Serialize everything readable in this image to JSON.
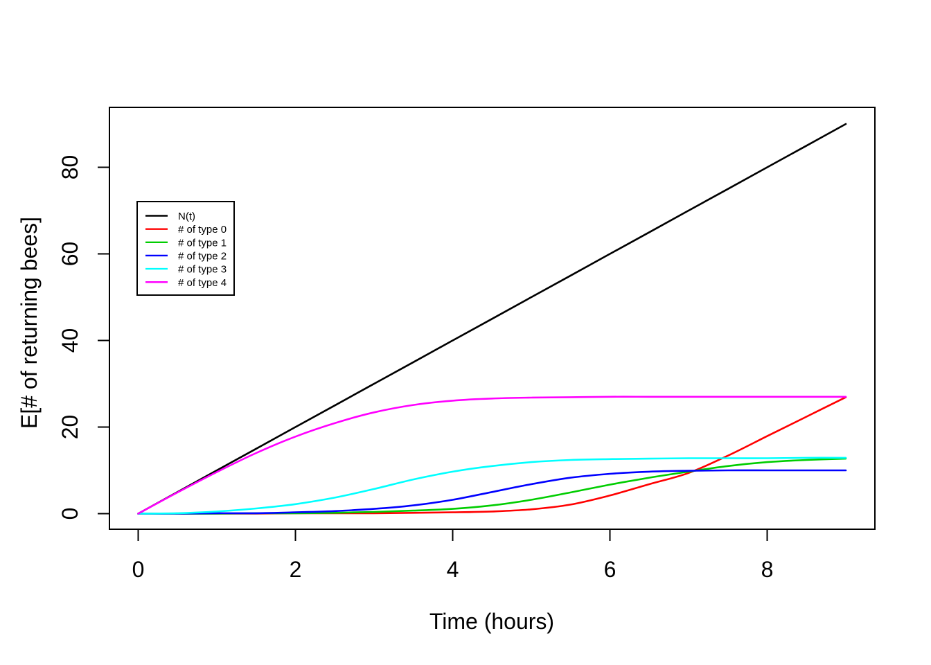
{
  "chart_data": {
    "type": "line",
    "title": "",
    "xlabel": "Time (hours)",
    "ylabel": "E[# of returning bees]",
    "xlim": [
      0,
      9
    ],
    "ylim": [
      0,
      90
    ],
    "x_ticks": [
      0,
      2,
      4,
      6,
      8
    ],
    "y_ticks": [
      0,
      20,
      40,
      60,
      80
    ],
    "grid": false,
    "legend_position": "upper-left-inside",
    "line_width": 2.6,
    "x": [
      0,
      0.5,
      1,
      1.5,
      2,
      2.5,
      3,
      3.5,
      4,
      4.5,
      5,
      5.5,
      6,
      6.5,
      7,
      7.5,
      8,
      8.5,
      9
    ],
    "series": [
      {
        "name": "N(t)",
        "color": "#000000",
        "values": [
          0,
          5,
          10,
          15,
          20,
          25,
          30,
          35,
          40,
          45,
          50,
          55,
          60,
          65,
          70,
          75,
          80,
          85,
          90
        ]
      },
      {
        "name": "# of type 0",
        "color": "#FF0000",
        "values": [
          0,
          0,
          0,
          0,
          0.1,
          0.1,
          0.1,
          0.2,
          0.3,
          0.5,
          1.0,
          2.1,
          4.2,
          6.8,
          9.4,
          13.4,
          17.9,
          22.4,
          26.9
        ]
      },
      {
        "name": "# of type 1",
        "color": "#00CD00",
        "values": [
          0,
          0,
          0,
          0.1,
          0.1,
          0.2,
          0.4,
          0.7,
          1.1,
          1.9,
          3.2,
          4.9,
          6.7,
          8.3,
          9.7,
          11.0,
          11.9,
          12.4,
          12.7
        ]
      },
      {
        "name": "# of type 2",
        "color": "#0000FF",
        "values": [
          0,
          0,
          0.1,
          0.1,
          0.3,
          0.6,
          1.1,
          1.9,
          3.2,
          5.0,
          6.8,
          8.3,
          9.2,
          9.7,
          9.9,
          10.0,
          10.0,
          10.0,
          10.0
        ]
      },
      {
        "name": "# of type 3",
        "color": "#00FFFF",
        "values": [
          0,
          0.1,
          0.5,
          1.2,
          2.2,
          3.7,
          5.7,
          7.9,
          9.7,
          11.0,
          11.9,
          12.4,
          12.6,
          12.7,
          12.8,
          12.8,
          12.8,
          12.9,
          12.9
        ]
      },
      {
        "name": "# of type 4",
        "color": "#FF00FF",
        "values": [
          0,
          4.9,
          9.6,
          14.0,
          17.8,
          20.9,
          23.4,
          25.1,
          26.1,
          26.6,
          26.8,
          26.9,
          27.0,
          27.0,
          27.0,
          27.0,
          27.0,
          27.0,
          27.0
        ]
      }
    ]
  }
}
